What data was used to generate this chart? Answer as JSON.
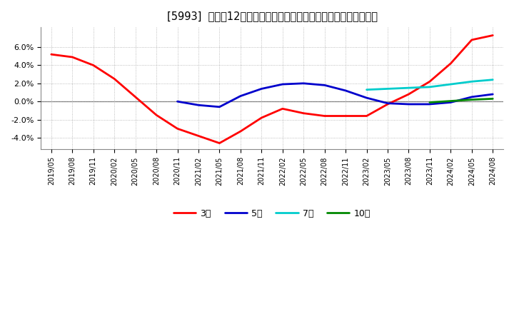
{
  "title": "[5993]  売上高12か月移動合計の対前年同期増減率の平均値の推移",
  "ylim": [
    -0.053,
    0.082
  ],
  "yticks": [
    -0.04,
    -0.02,
    0.0,
    0.02,
    0.04,
    0.06
  ],
  "background_color": "#ffffff",
  "plot_bg_color": "#ffffff",
  "grid_color": "#aaaaaa",
  "series": {
    "3year": {
      "color": "#ff0000",
      "label": "3年",
      "linewidth": 2.0,
      "points": [
        [
          "2019/05",
          0.052
        ],
        [
          "2019/08",
          0.049
        ],
        [
          "2019/11",
          0.04
        ],
        [
          "2020/02",
          0.025
        ],
        [
          "2020/05",
          0.005
        ],
        [
          "2020/08",
          -0.015
        ],
        [
          "2020/11",
          -0.03
        ],
        [
          "2021/02",
          -0.038
        ],
        [
          "2021/05",
          -0.046
        ],
        [
          "2021/08",
          -0.033
        ],
        [
          "2021/11",
          -0.018
        ],
        [
          "2022/02",
          -0.008
        ],
        [
          "2022/05",
          -0.013
        ],
        [
          "2022/08",
          -0.016
        ],
        [
          "2022/11",
          -0.016
        ],
        [
          "2023/02",
          -0.016
        ],
        [
          "2023/05",
          -0.003
        ],
        [
          "2023/08",
          0.008
        ],
        [
          "2023/11",
          0.022
        ],
        [
          "2024/02",
          0.042
        ],
        [
          "2024/05",
          0.068
        ],
        [
          "2024/08",
          0.073
        ]
      ]
    },
    "5year": {
      "color": "#0000cc",
      "label": "5年",
      "linewidth": 2.0,
      "points": [
        [
          "2020/11",
          0.0
        ],
        [
          "2021/02",
          -0.004
        ],
        [
          "2021/05",
          -0.006
        ],
        [
          "2021/08",
          0.006
        ],
        [
          "2021/11",
          0.014
        ],
        [
          "2022/02",
          0.019
        ],
        [
          "2022/05",
          0.02
        ],
        [
          "2022/08",
          0.018
        ],
        [
          "2022/11",
          0.012
        ],
        [
          "2023/02",
          0.004
        ],
        [
          "2023/05",
          -0.002
        ],
        [
          "2023/08",
          -0.003
        ],
        [
          "2023/11",
          -0.003
        ],
        [
          "2024/02",
          -0.001
        ],
        [
          "2024/05",
          0.005
        ],
        [
          "2024/08",
          0.008
        ]
      ]
    },
    "7year": {
      "color": "#00cccc",
      "label": "7年",
      "linewidth": 2.0,
      "points": [
        [
          "2023/02",
          0.013
        ],
        [
          "2023/05",
          0.014
        ],
        [
          "2023/08",
          0.015
        ],
        [
          "2023/11",
          0.016
        ],
        [
          "2024/02",
          0.019
        ],
        [
          "2024/05",
          0.022
        ],
        [
          "2024/08",
          0.024
        ]
      ]
    },
    "10year": {
      "color": "#008800",
      "label": "10年",
      "linewidth": 2.0,
      "points": [
        [
          "2023/11",
          -0.001
        ],
        [
          "2024/02",
          0.0005
        ],
        [
          "2024/05",
          0.002
        ],
        [
          "2024/08",
          0.003
        ]
      ]
    }
  },
  "xtick_labels": [
    "2019/05",
    "2019/08",
    "2019/11",
    "2020/02",
    "2020/05",
    "2020/08",
    "2020/11",
    "2021/02",
    "2021/05",
    "2021/08",
    "2021/11",
    "2022/02",
    "2022/05",
    "2022/08",
    "2022/11",
    "2023/02",
    "2023/05",
    "2023/08",
    "2023/11",
    "2024/02",
    "2024/05",
    "2024/08"
  ]
}
